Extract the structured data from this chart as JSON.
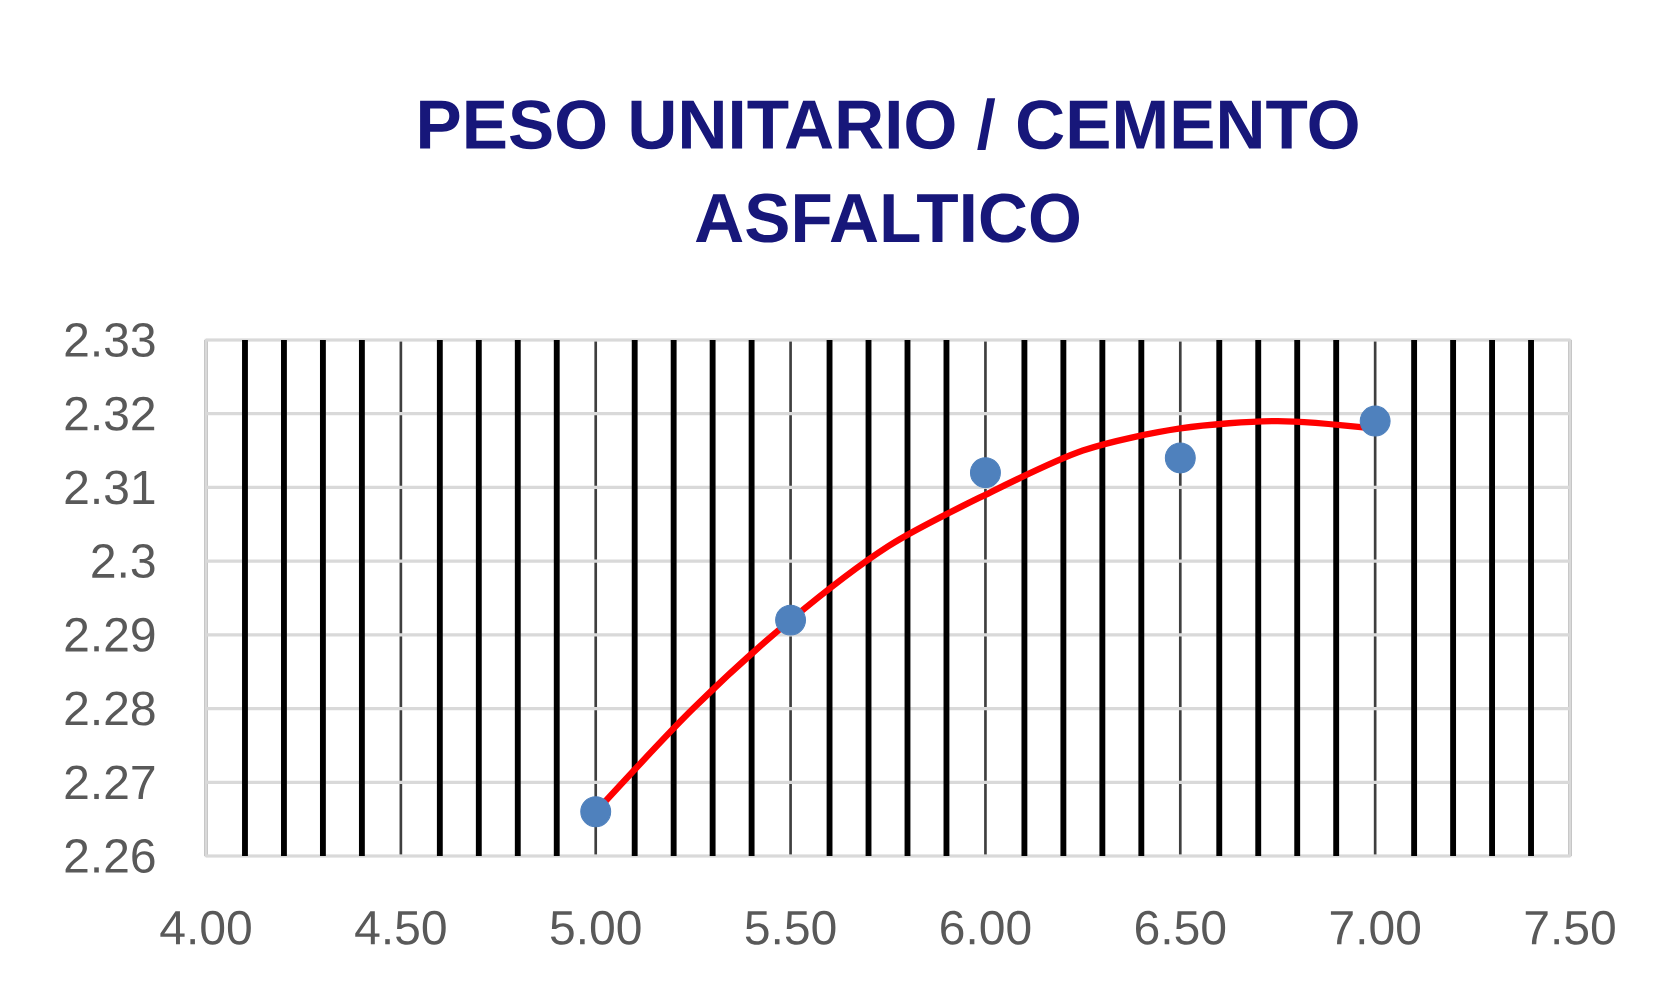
{
  "chart_data": {
    "type": "scatter",
    "title": "PESO UNITARIO / CEMENTO ASFALTICO",
    "xlim": [
      4,
      7.5
    ],
    "xticks": [
      {
        "value": 4,
        "label": "4.00"
      },
      {
        "value": 4.1,
        "label": null
      },
      {
        "value": 4.2,
        "label": null
      },
      {
        "value": 4.3,
        "label": null
      },
      {
        "value": 4.4,
        "label": null
      },
      {
        "value": 4.5,
        "label": "4.50"
      },
      {
        "value": 4.6,
        "label": null
      },
      {
        "value": 4.7,
        "label": null
      },
      {
        "value": 4.8,
        "label": null
      },
      {
        "value": 4.9,
        "label": null
      },
      {
        "value": 5,
        "label": "5.00"
      },
      {
        "value": 5.1,
        "label": null
      },
      {
        "value": 5.2,
        "label": null
      },
      {
        "value": 5.3,
        "label": null
      },
      {
        "value": 5.4,
        "label": null
      },
      {
        "value": 5.5,
        "label": "5.50"
      },
      {
        "value": 5.6,
        "label": null
      },
      {
        "value": 5.7,
        "label": null
      },
      {
        "value": 5.8,
        "label": null
      },
      {
        "value": 5.9,
        "label": null
      },
      {
        "value": 6,
        "label": "6.00"
      },
      {
        "value": 6.1,
        "label": null
      },
      {
        "value": 6.2,
        "label": null
      },
      {
        "value": 6.3,
        "label": null
      },
      {
        "value": 6.4,
        "label": null
      },
      {
        "value": 6.5,
        "label": "6.50"
      },
      {
        "value": 6.6,
        "label": null
      },
      {
        "value": 6.7,
        "label": null
      },
      {
        "value": 6.8,
        "label": null
      },
      {
        "value": 6.9,
        "label": null
      },
      {
        "value": 7,
        "label": "7.00"
      },
      {
        "value": 7.1,
        "label": null
      },
      {
        "value": 7.2,
        "label": null
      },
      {
        "value": 7.3,
        "label": null
      },
      {
        "value": 7.4,
        "label": null
      },
      {
        "value": 7.5,
        "label": "7.50"
      }
    ],
    "ylim": [
      2.26,
      2.33
    ],
    "yticks": [
      2.26,
      2.27,
      2.28,
      2.29,
      2.3,
      2.31,
      2.32,
      2.33
    ],
    "grid": true,
    "series": [
      {
        "type": "scatter",
        "color": "#4f81bd",
        "marker": "circle",
        "x": [
          5,
          5.5,
          6,
          6.5,
          7
        ],
        "values": [
          2.266,
          2.292,
          2.312,
          2.314,
          2.319
        ]
      },
      {
        "type": "line",
        "color": "#ff0000",
        "x": [
          5,
          5.25,
          5.5,
          5.75,
          6,
          6.25,
          6.5,
          6.75,
          7
        ],
        "values": [
          2.266,
          2.28,
          2.292,
          2.302,
          2.309,
          2.315,
          2.318,
          2.319,
          2.318
        ]
      }
    ]
  }
}
